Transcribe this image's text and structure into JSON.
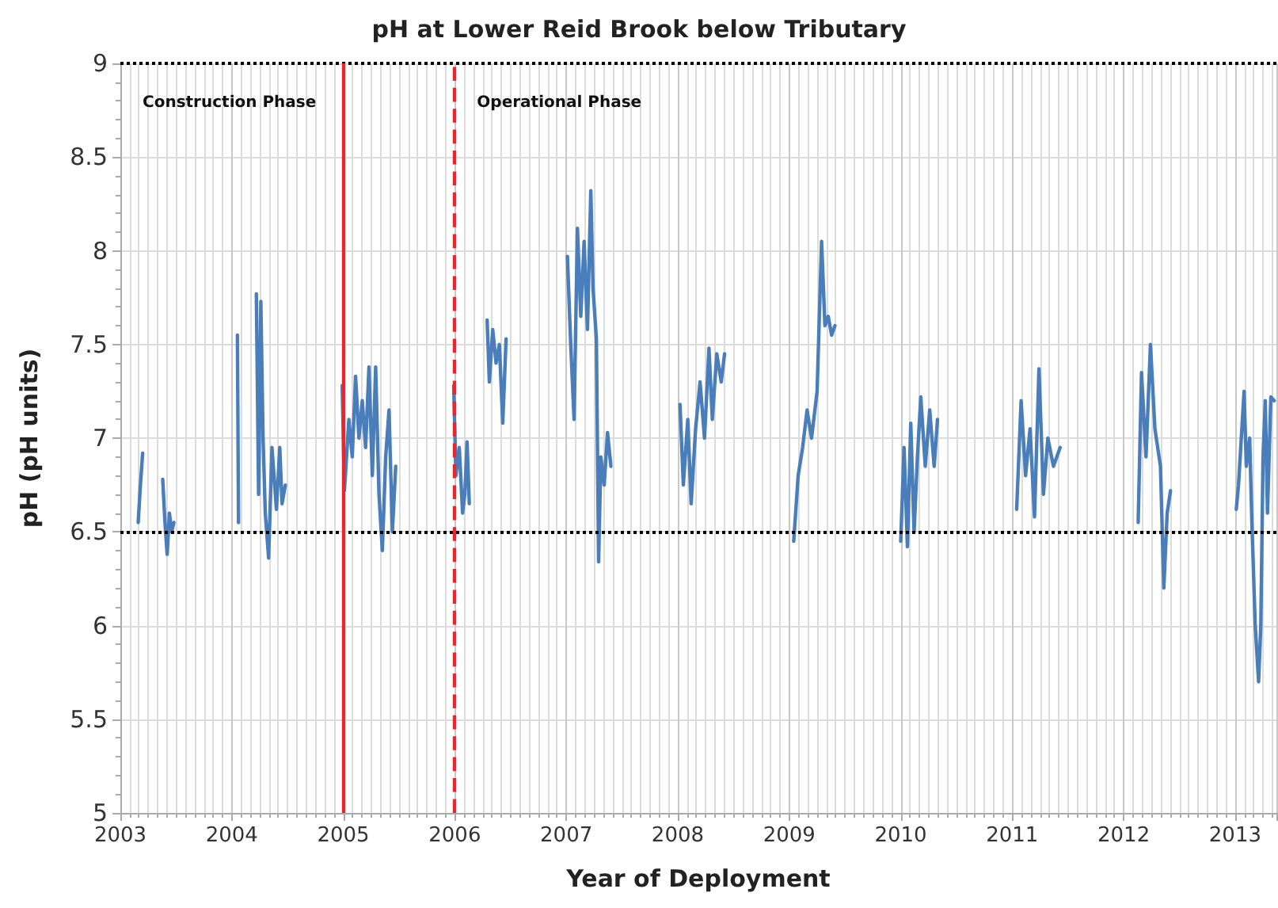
{
  "chart_data": {
    "type": "line",
    "title": "pH at Lower Reid Brook below Tributary",
    "xlabel": "Year of Deployment",
    "ylabel": "pH (pH units)",
    "xlim": [
      2003,
      2013.37
    ],
    "xticks": [
      2003,
      2004,
      2005,
      2006,
      2007,
      2008,
      2009,
      2010,
      2011,
      2012,
      2013
    ],
    "ylim": [
      5,
      9
    ],
    "yticks": [
      5,
      5.5,
      6,
      6.5,
      7,
      7.5,
      8,
      8.5,
      9
    ],
    "grid": true,
    "marker": "none",
    "line_style": "solid",
    "ref_lines": [
      {
        "axis": "y",
        "value": 9,
        "color": "#000000",
        "line_style": "dotted"
      },
      {
        "axis": "y",
        "value": 6.5,
        "color": "#000000",
        "line_style": "dotted"
      },
      {
        "axis": "x",
        "value": 2005,
        "color": "#e8262b",
        "line_style": "solid"
      },
      {
        "axis": "x",
        "value": 2006,
        "color": "#e8262b",
        "line_style": "dashed"
      }
    ],
    "annotations": [
      "Construction Phase",
      "Operational Phase"
    ],
    "series": [
      {
        "color": "#4a7ebb",
        "x": [
          2003.16,
          2003.18,
          2003.2,
          2003.3,
          2003.38,
          2003.4,
          2003.42,
          2003.44,
          2003.46,
          2003.48,
          2003.8,
          2004.05,
          2004.06,
          2004.15,
          2004.22,
          2004.24,
          2004.26,
          2004.28,
          2004.3,
          2004.33,
          2004.36,
          2004.4,
          2004.43,
          2004.45,
          2004.48,
          2004.7,
          2004.99,
          2005.01,
          2005.05,
          2005.08,
          2005.11,
          2005.14,
          2005.17,
          2005.2,
          2005.23,
          2005.26,
          2005.29,
          2005.32,
          2005.35,
          2005.38,
          2005.41,
          2005.44,
          2005.47,
          2005.7,
          2005.99,
          2006.01,
          2006.04,
          2006.07,
          2006.09,
          2006.11,
          2006.13,
          2006.2,
          2006.29,
          2006.31,
          2006.34,
          2006.37,
          2006.4,
          2006.43,
          2006.46,
          2006.7,
          2007.01,
          2007.04,
          2007.07,
          2007.1,
          2007.13,
          2007.16,
          2007.19,
          2007.22,
          2007.24,
          2007.27,
          2007.29,
          2007.31,
          2007.34,
          2007.37,
          2007.4,
          2007.7,
          2008.02,
          2008.05,
          2008.09,
          2008.12,
          2008.16,
          2008.2,
          2008.24,
          2008.28,
          2008.31,
          2008.35,
          2008.39,
          2008.42,
          2008.7,
          2009.04,
          2009.08,
          2009.12,
          2009.16,
          2009.2,
          2009.25,
          2009.29,
          2009.32,
          2009.35,
          2009.38,
          2009.41,
          2009.7,
          2010.0,
          2010.03,
          2010.06,
          2010.09,
          2010.12,
          2010.15,
          2010.18,
          2010.22,
          2010.26,
          2010.3,
          2010.33,
          2010.7,
          2011.04,
          2011.08,
          2011.12,
          2011.16,
          2011.2,
          2011.24,
          2011.28,
          2011.32,
          2011.37,
          2011.43,
          2011.7,
          2012.13,
          2012.16,
          2012.2,
          2012.24,
          2012.28,
          2012.33,
          2012.36,
          2012.39,
          2012.42,
          2012.7,
          2013.01,
          2013.03,
          2013.08,
          2013.1,
          2013.13,
          2013.15,
          2013.18,
          2013.21,
          2013.23,
          2013.25,
          2013.27,
          2013.29,
          2013.32,
          2013.35
        ],
        "values": [
          6.55,
          6.75,
          6.92,
          null,
          6.78,
          6.55,
          6.38,
          6.6,
          6.5,
          6.55,
          null,
          7.55,
          6.55,
          null,
          7.77,
          6.7,
          7.73,
          7.0,
          6.6,
          6.36,
          6.95,
          6.62,
          6.95,
          6.65,
          6.75,
          null,
          7.28,
          6.72,
          7.1,
          6.9,
          7.33,
          7.0,
          7.2,
          6.95,
          7.38,
          6.8,
          7.38,
          6.7,
          6.4,
          6.9,
          7.15,
          6.5,
          6.85,
          null,
          7.28,
          6.8,
          6.95,
          6.6,
          6.7,
          6.98,
          6.65,
          null,
          7.63,
          7.3,
          7.58,
          7.4,
          7.5,
          7.08,
          7.53,
          null,
          7.97,
          7.5,
          7.1,
          8.12,
          7.65,
          8.05,
          7.58,
          8.32,
          7.8,
          7.53,
          6.34,
          6.9,
          6.75,
          7.03,
          6.85,
          null,
          7.18,
          6.75,
          7.1,
          6.65,
          7.05,
          7.3,
          7.0,
          7.48,
          7.1,
          7.45,
          7.3,
          7.45,
          null,
          6.45,
          6.8,
          6.95,
          7.15,
          7.0,
          7.25,
          8.05,
          7.6,
          7.65,
          7.55,
          7.6,
          null,
          6.45,
          6.95,
          6.42,
          7.08,
          6.5,
          6.9,
          7.22,
          6.85,
          7.15,
          6.85,
          7.1,
          null,
          6.62,
          7.2,
          6.8,
          7.05,
          6.58,
          7.37,
          6.7,
          7.0,
          6.85,
          6.95,
          null,
          6.55,
          7.35,
          6.9,
          7.5,
          7.05,
          6.85,
          6.2,
          6.6,
          6.72,
          null,
          6.62,
          6.75,
          7.25,
          6.85,
          7.0,
          6.55,
          6.0,
          5.7,
          6.0,
          6.9,
          7.2,
          6.6,
          7.22,
          7.2
        ]
      }
    ]
  }
}
